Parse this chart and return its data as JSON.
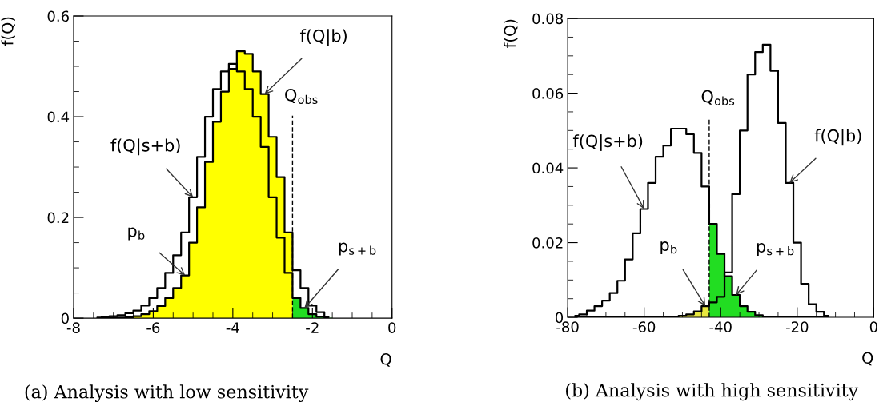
{
  "chart_data": [
    {
      "type": "step",
      "xlabel": "Q",
      "ylabel": "f(Q)",
      "xlim": [
        -8,
        0
      ],
      "ylim": [
        0,
        0.6
      ],
      "xticks": [
        -8,
        -6,
        -4,
        -2,
        0
      ],
      "yticks": [
        0,
        0.2,
        0.4,
        0.6
      ],
      "grid": false,
      "legend": false,
      "x": [
        -7.4,
        -7.2,
        -7.0,
        -6.8,
        -6.6,
        -6.4,
        -6.2,
        -6.0,
        -5.8,
        -5.6,
        -5.4,
        -5.2,
        -5.0,
        -4.8,
        -4.6,
        -4.4,
        -4.2,
        -4.0,
        -3.8,
        -3.6,
        -3.4,
        -3.2,
        -3.0,
        -2.8,
        -2.6,
        -2.4,
        -2.2,
        -2.0,
        -1.8,
        -1.6
      ],
      "series": [
        {
          "type": "area",
          "color": "#ffff00",
          "x": [
            -7.5,
            -7.3,
            -7.1,
            -6.9,
            -6.7,
            -6.5,
            -6.3,
            -6.1,
            -5.9,
            -5.7,
            -5.5,
            -5.3,
            -5.1,
            -4.9,
            -4.7,
            -4.5,
            -4.3,
            -4.1,
            -3.9,
            -3.7,
            -3.5,
            -3.3,
            -3.1,
            -2.9,
            -2.7,
            -2.5
          ],
          "values": [
            0,
            0,
            0.001,
            0.001,
            0.002,
            0.004,
            0.008,
            0.014,
            0.024,
            0.04,
            0.06,
            0.085,
            0.15,
            0.22,
            0.31,
            0.39,
            0.45,
            0.495,
            0.53,
            0.525,
            0.49,
            0.445,
            0.36,
            0.28,
            0.17,
            0.17
          ]
        },
        {
          "type": "area",
          "color": "#22dd22",
          "x": [
            -2.5,
            -2.3,
            -2.1,
            -1.9,
            -1.7,
            -1.5
          ],
          "values": [
            0.04,
            0.02,
            0.008,
            0.003,
            0.001,
            0.001
          ]
        },
        {
          "type": "step",
          "color": "#000000",
          "values": [
            0.001,
            0.002,
            0.004,
            0.006,
            0.01,
            0.015,
            0.025,
            0.04,
            0.06,
            0.09,
            0.125,
            0.17,
            0.24,
            0.32,
            0.4,
            0.455,
            0.49,
            0.505,
            0.49,
            0.455,
            0.4,
            0.34,
            0.24,
            0.16,
            0.09,
            0.04,
            0.02,
            0.008,
            0.003,
            0.001
          ]
        },
        {
          "type": "step",
          "color": "#000000",
          "values": [
            0,
            0,
            0.001,
            0.001,
            0.002,
            0.004,
            0.008,
            0.014,
            0.024,
            0.04,
            0.06,
            0.085,
            0.15,
            0.22,
            0.31,
            0.39,
            0.45,
            0.495,
            0.53,
            0.525,
            0.49,
            0.445,
            0.36,
            0.28,
            0.17,
            0.095,
            0.06,
            0.025,
            0.012,
            0.003
          ]
        }
      ],
      "ref_lines": [
        {
          "axis": "x",
          "value": -2.5,
          "label": "Q$_{obs}$",
          "line_style": "dashed",
          "color": "#000000"
        }
      ],
      "annotations": [
        {
          "text": "f(Q|b)",
          "x": -3.2,
          "y": 0.445
        },
        {
          "text": "f(Q|s+b)",
          "x": -5.0,
          "y": 0.24
        },
        {
          "text": "p$_{b}$",
          "x": -5.2,
          "y": 0.085
        },
        {
          "text": "p$_{s+b}$",
          "x": -2.2,
          "y": 0.02
        },
        "(a) Analysis with low sensitivity"
      ]
    },
    {
      "type": "step",
      "xlabel": "Q",
      "ylabel": "f(Q)",
      "xlim": [
        -80,
        0
      ],
      "ylim": [
        0,
        0.08
      ],
      "xticks": [
        -80,
        -60,
        -40,
        -20,
        0
      ],
      "yticks": [
        0,
        0.02,
        0.04,
        0.06,
        0.08
      ],
      "grid": false,
      "legend": false,
      "x": [
        -78,
        -76,
        -74,
        -72,
        -70,
        -68,
        -66,
        -64,
        -62,
        -60,
        -58,
        -56,
        -54,
        -52,
        -50,
        -48,
        -46,
        -44,
        -42,
        -40,
        -38,
        -36,
        -34,
        -32,
        -30,
        -28,
        -26,
        -24,
        -22,
        -20,
        -18,
        -16,
        -14,
        -12
      ],
      "series": [
        {
          "type": "area",
          "color": "#e8e840",
          "x": [
            -53,
            -51,
            -49,
            -47,
            -45,
            -43
          ],
          "values": [
            0.0002,
            0.0004,
            0.0008,
            0.0016,
            0.003,
            0.003
          ]
        },
        {
          "type": "area",
          "color": "#22dd22",
          "x": [
            -43,
            -41,
            -39,
            -37,
            -35,
            -33,
            -31,
            -29,
            -27
          ],
          "values": [
            0.025,
            0.017,
            0.011,
            0.006,
            0.003,
            0.0015,
            0.0006,
            0.0002,
            0.0002
          ]
        },
        {
          "type": "step",
          "color": "#000000",
          "values": [
            0.0004,
            0.0008,
            0.0018,
            0.003,
            0.0045,
            0.0065,
            0.0098,
            0.0155,
            0.0225,
            0.029,
            0.036,
            0.043,
            0.046,
            0.0505,
            0.0505,
            0.049,
            0.044,
            0.035,
            0.025,
            0.017,
            0.011,
            0.006,
            0.003,
            0.0015,
            0.0006,
            0.0002,
            0,
            0,
            0,
            0,
            0,
            0,
            0,
            0
          ]
        },
        {
          "type": "step",
          "color": "#000000",
          "values": [
            0,
            0,
            0,
            0,
            0,
            0,
            0,
            0,
            0,
            0,
            0,
            0,
            0,
            0.0002,
            0.0004,
            0.0008,
            0.0016,
            0.003,
            0.004,
            0.0055,
            0.012,
            0.033,
            0.05,
            0.065,
            0.071,
            0.073,
            0.066,
            0.052,
            0.036,
            0.02,
            0.009,
            0.0035,
            0.0015,
            0.0004
          ]
        }
      ],
      "ref_lines": [
        {
          "axis": "x",
          "value": -43,
          "label": "Q$_{obs}$",
          "line_style": "dashed",
          "color": "#000000"
        }
      ],
      "annotations": [
        {
          "text": "f(Q|s+b)",
          "x": -60,
          "y": 0.029
        },
        {
          "text": "f(Q|b)",
          "x": -22,
          "y": 0.036
        },
        {
          "text": "p$_{b}$",
          "x": -44,
          "y": 0.003
        },
        {
          "text": "p$_{s+b}$",
          "x": -36,
          "y": 0.006
        },
        "(b) Analysis with high sensitivity"
      ]
    }
  ]
}
